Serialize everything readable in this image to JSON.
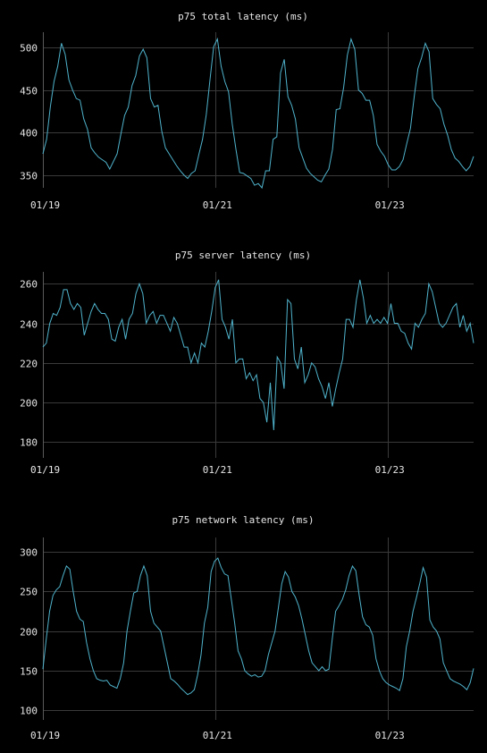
{
  "colors": {
    "background": "#000000",
    "line": "#4fb3cc",
    "grid": "#3a3a3a",
    "text": "#e6e6e6"
  },
  "chart_data": [
    {
      "type": "line",
      "title": "p75 total latency (ms)",
      "xlabel": "",
      "ylabel": "",
      "x_start": "01/19",
      "x_end": "01/24",
      "x_ticks": [
        {
          "x": "01/19",
          "label": "01/19"
        },
        {
          "x": "01/21",
          "label": "01/21"
        },
        {
          "x": "01/23",
          "label": "01/23"
        }
      ],
      "ylim": [
        335,
        518
      ],
      "y_ticks": [
        350,
        400,
        450,
        500
      ],
      "grid": true,
      "legend": "none",
      "values": [
        375,
        392,
        430,
        460,
        478,
        505,
        492,
        462,
        450,
        440,
        438,
        416,
        404,
        382,
        376,
        371,
        368,
        365,
        357,
        366,
        375,
        398,
        420,
        430,
        455,
        467,
        490,
        498,
        488,
        440,
        430,
        432,
        402,
        382,
        375,
        368,
        361,
        355,
        350,
        346,
        352,
        355,
        374,
        392,
        421,
        462,
        501,
        510,
        478,
        460,
        448,
        410,
        380,
        353,
        352,
        349,
        346,
        338,
        340,
        335,
        355,
        355,
        392,
        395,
        470,
        486,
        442,
        432,
        416,
        382,
        370,
        358,
        352,
        348,
        344,
        342,
        350,
        357,
        380,
        427,
        428,
        453,
        491,
        510,
        498,
        450,
        446,
        438,
        438,
        420,
        386,
        378,
        372,
        362,
        356,
        356,
        360,
        368,
        387,
        405,
        442,
        475,
        488,
        505,
        495,
        440,
        433,
        428,
        410,
        397,
        380,
        370,
        366,
        360,
        355,
        360,
        372
      ]
    },
    {
      "type": "line",
      "title": "p75 server latency (ms)",
      "xlabel": "",
      "ylabel": "",
      "x_start": "01/19",
      "x_end": "01/24",
      "x_ticks": [
        {
          "x": "01/19",
          "label": "01/19"
        },
        {
          "x": "01/21",
          "label": "01/21"
        },
        {
          "x": "01/23",
          "label": "01/23"
        }
      ],
      "ylim": [
        172,
        266
      ],
      "y_ticks": [
        180,
        200,
        220,
        240,
        260
      ],
      "grid": true,
      "legend": "none",
      "values": [
        228,
        230,
        240,
        245,
        244,
        248,
        257,
        257,
        250,
        247,
        250,
        248,
        234,
        240,
        246,
        250,
        247,
        245,
        245,
        242,
        232,
        231,
        238,
        242,
        232,
        242,
        245,
        255,
        260,
        255,
        240,
        244,
        246,
        240,
        244,
        244,
        240,
        236,
        243,
        240,
        234,
        228,
        228,
        220,
        225,
        220,
        230,
        228,
        236,
        246,
        258,
        262,
        242,
        238,
        232,
        242,
        220,
        222,
        222,
        212,
        215,
        211,
        214,
        202,
        200,
        190,
        210,
        186,
        223,
        220,
        207,
        252,
        250,
        222,
        217,
        228,
        210,
        214,
        220,
        218,
        212,
        208,
        202,
        210,
        198,
        207,
        215,
        222,
        242,
        242,
        238,
        252,
        262,
        253,
        240,
        244,
        240,
        242,
        240,
        243,
        240,
        250,
        240,
        240,
        236,
        235,
        230,
        227,
        240,
        238,
        242,
        245,
        260,
        256,
        248,
        240,
        238,
        240,
        244,
        248,
        250,
        238,
        244,
        236,
        240,
        230
      ]
    },
    {
      "type": "line",
      "title": "p75 network latency (ms)",
      "xlabel": "",
      "ylabel": "",
      "x_start": "01/19",
      "x_end": "01/24",
      "x_ticks": [
        {
          "x": "01/19",
          "label": "01/19"
        },
        {
          "x": "01/21",
          "label": "01/21"
        },
        {
          "x": "01/23",
          "label": "01/23"
        }
      ],
      "ylim": [
        88,
        318
      ],
      "y_ticks": [
        100,
        150,
        200,
        250,
        300
      ],
      "grid": true,
      "legend": "none",
      "values": [
        152,
        190,
        225,
        245,
        252,
        256,
        270,
        282,
        278,
        250,
        225,
        215,
        212,
        185,
        165,
        150,
        140,
        138,
        137,
        138,
        132,
        130,
        128,
        140,
        160,
        200,
        225,
        248,
        250,
        270,
        282,
        270,
        225,
        210,
        205,
        200,
        180,
        160,
        140,
        137,
        133,
        128,
        124,
        120,
        122,
        126,
        145,
        170,
        210,
        230,
        275,
        288,
        292,
        280,
        272,
        270,
        240,
        210,
        175,
        165,
        150,
        146,
        143,
        145,
        142,
        143,
        150,
        170,
        185,
        200,
        230,
        260,
        275,
        268,
        250,
        243,
        232,
        215,
        195,
        175,
        160,
        155,
        150,
        155,
        150,
        152,
        190,
        225,
        232,
        240,
        252,
        270,
        282,
        276,
        245,
        218,
        208,
        205,
        195,
        165,
        150,
        140,
        135,
        132,
        130,
        128,
        125,
        140,
        180,
        200,
        225,
        242,
        260,
        280,
        268,
        214,
        205,
        200,
        190,
        160,
        150,
        140,
        137,
        135,
        133,
        130,
        126,
        135,
        153
      ]
    }
  ]
}
